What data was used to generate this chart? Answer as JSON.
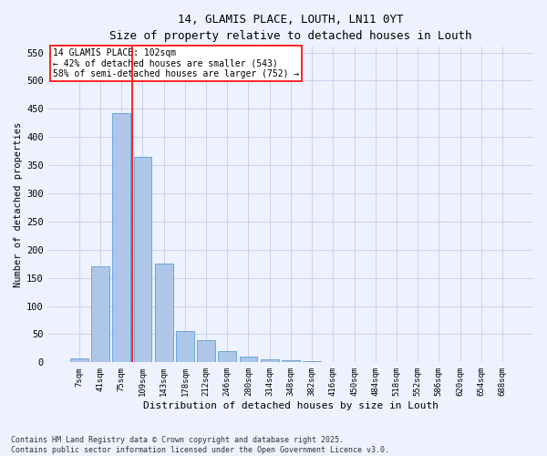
{
  "title": "14, GLAMIS PLACE, LOUTH, LN11 0YT",
  "subtitle": "Size of property relative to detached houses in Louth",
  "xlabel": "Distribution of detached houses by size in Louth",
  "ylabel": "Number of detached properties",
  "categories": [
    "7sqm",
    "41sqm",
    "75sqm",
    "109sqm",
    "143sqm",
    "178sqm",
    "212sqm",
    "246sqm",
    "280sqm",
    "314sqm",
    "348sqm",
    "382sqm",
    "416sqm",
    "450sqm",
    "484sqm",
    "518sqm",
    "552sqm",
    "586sqm",
    "620sqm",
    "654sqm",
    "688sqm"
  ],
  "values": [
    7,
    170,
    443,
    364,
    176,
    56,
    40,
    20,
    10,
    5,
    3,
    2,
    1,
    1,
    1,
    0,
    1,
    0,
    0,
    1,
    1
  ],
  "bar_color": "#aec6e8",
  "bar_edge_color": "#5a9fd4",
  "vline_color": "red",
  "annotation_title": "14 GLAMIS PLACE: 102sqm",
  "annotation_line2": "← 42% of detached houses are smaller (543)",
  "annotation_line3": "58% of semi-detached houses are larger (752) →",
  "annotation_box_color": "white",
  "annotation_box_edge": "red",
  "ylim": [
    0,
    560
  ],
  "yticks": [
    0,
    50,
    100,
    150,
    200,
    250,
    300,
    350,
    400,
    450,
    500,
    550
  ],
  "footer_line1": "Contains HM Land Registry data © Crown copyright and database right 2025.",
  "footer_line2": "Contains public sector information licensed under the Open Government Licence v3.0.",
  "bg_color": "#eef2ff",
  "grid_color": "#c8d0ee"
}
